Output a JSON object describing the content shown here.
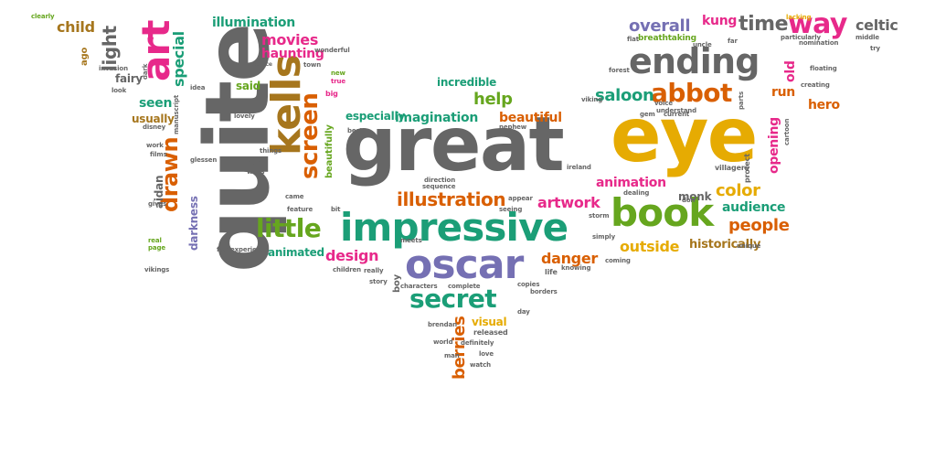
{
  "palette": {
    "gray": "#666666",
    "gold": "#E6AB02",
    "green": "#1B9E77",
    "orange": "#D95F02",
    "purple": "#7570B3",
    "pink": "#E7298A",
    "olive": "#66A61E",
    "brown": "#A6761D"
  },
  "words": [
    "great",
    "eye",
    "quite",
    "impressive",
    "oscar",
    "book",
    "ending",
    "kells",
    "art",
    "way",
    "secret",
    "abbot",
    "little",
    "screen",
    "drawn",
    "illustration",
    "time",
    "help",
    "color",
    "saloon",
    "people",
    "artwork",
    "overall",
    "berries",
    "danger",
    "outside",
    "audience",
    "light",
    "movies",
    "special",
    "design",
    "animation",
    "beautiful",
    "run",
    "imagination",
    "seen",
    "child",
    "celtic",
    "haunting",
    "illumination",
    "kung",
    "historically",
    "especially",
    "incredible",
    "usually",
    "animated",
    "visual",
    "monk",
    "old",
    "opening",
    "hero",
    "darkness",
    "fairy",
    "said",
    "aidan",
    "beautifully",
    "breathtaking",
    "ago",
    "lacking",
    "clearly",
    "dark",
    "invasion",
    "source",
    "town",
    "true",
    "new",
    "big",
    "idea",
    "lovely",
    "fun",
    "things",
    "walls",
    "feature",
    "bit",
    "came",
    "gives",
    "real",
    "page",
    "fact",
    "experience",
    "children",
    "really",
    "story",
    "boy",
    "characters",
    "life",
    "knowing",
    "complete",
    "copies",
    "borders",
    "released",
    "day",
    "brendan",
    "world",
    "definitely",
    "man",
    "love",
    "watch",
    "meets",
    "direction",
    "sequence",
    "appear",
    "seeing",
    "storm",
    "simply",
    "ireland",
    "coming",
    "unique",
    "don",
    "dealing",
    "villagers",
    "protect",
    "cartoon",
    "creating",
    "floating",
    "middle",
    "try",
    "nomination",
    "particularly",
    "far",
    "uncle",
    "flat",
    "forest",
    "voice",
    "understand",
    "gem",
    "current",
    "parts",
    "viking",
    "nephew",
    "best",
    "vikings",
    "disney",
    "work",
    "films",
    "glessen",
    "manuscript",
    "look",
    "wonderful"
  ]
}
